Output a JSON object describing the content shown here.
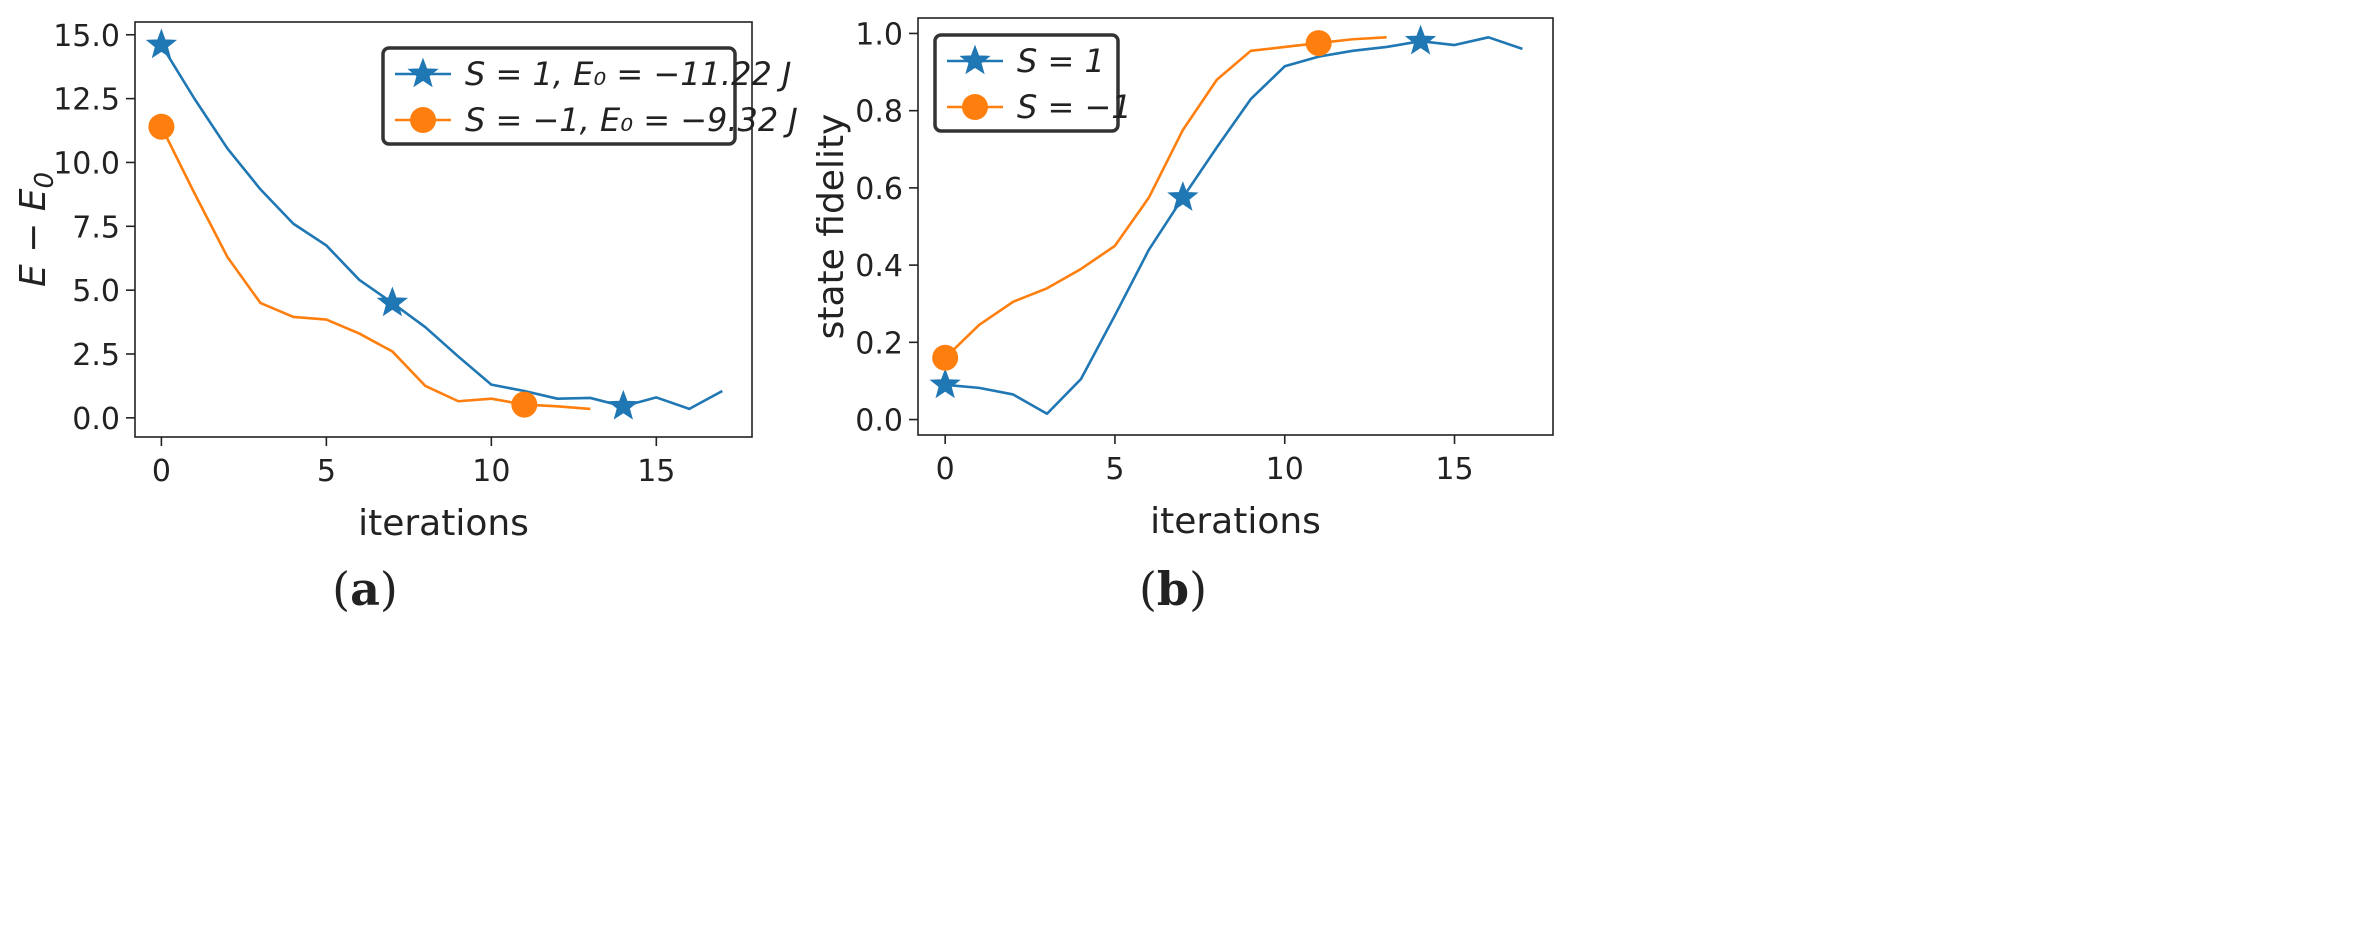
{
  "chart_data": [
    {
      "type": "line",
      "panel_label": "a",
      "xlabel": "iterations",
      "ylabel": "E − E",
      "ylabel_subscript": "0",
      "xlim": [
        -0.8,
        17.9
      ],
      "ylim": [
        -0.75,
        15.5
      ],
      "xticks": [
        0,
        5,
        10,
        15
      ],
      "xtick_labels": [
        "0",
        "5",
        "10",
        "15"
      ],
      "yticks": [
        0,
        2.5,
        5,
        7.5,
        10,
        12.5,
        15
      ],
      "ytick_labels": [
        "0.0",
        "2.5",
        "5.0",
        "7.5",
        "10.0",
        "12.5",
        "15.0"
      ],
      "grid": false,
      "legend_position": "top-right",
      "series": [
        {
          "name": "S = 1, E0 = −11.22 J",
          "legend_label": "S = 1, E₀ = −11.22 J",
          "color": "#1f77b4",
          "marker": "star",
          "marker_indices": [
            0,
            7,
            14
          ],
          "x": [
            0,
            1,
            2,
            3,
            4,
            5,
            6,
            7,
            8,
            9,
            10,
            11,
            12,
            13,
            14,
            15,
            16,
            17
          ],
          "y": [
            14.6,
            12.5,
            10.55,
            8.95,
            7.6,
            6.75,
            5.4,
            4.5,
            3.55,
            2.4,
            1.3,
            1.05,
            0.75,
            0.78,
            0.45,
            0.8,
            0.35,
            1.05
          ]
        },
        {
          "name": "S = −1, E0 = −9.32 J",
          "legend_label": "S = −1, E₀ = −9.32 J",
          "color": "#ff7f0e",
          "marker": "circle",
          "marker_indices": [
            0,
            11
          ],
          "x": [
            0,
            1,
            2,
            3,
            4,
            5,
            6,
            7,
            8,
            9,
            10,
            11,
            12,
            13
          ],
          "y": [
            11.4,
            8.8,
            6.3,
            4.5,
            3.95,
            3.85,
            3.3,
            2.6,
            1.25,
            0.65,
            0.75,
            0.52,
            0.45,
            0.35
          ]
        }
      ]
    },
    {
      "type": "line",
      "panel_label": "b",
      "xlabel": "iterations",
      "ylabel": "state fidelity",
      "xlim": [
        -0.8,
        17.9
      ],
      "ylim": [
        -0.04,
        1.04
      ],
      "xticks": [
        0,
        5,
        10,
        15
      ],
      "xtick_labels": [
        "0",
        "5",
        "10",
        "15"
      ],
      "yticks": [
        0,
        0.2,
        0.4,
        0.6,
        0.8,
        1.0
      ],
      "ytick_labels": [
        "0.0",
        "0.2",
        "0.4",
        "0.6",
        "0.8",
        "1.0"
      ],
      "grid": false,
      "legend_position": "top-left",
      "series": [
        {
          "name": "S = 1",
          "legend_label": "S =  1",
          "color": "#1f77b4",
          "marker": "star",
          "marker_indices": [
            0,
            7,
            14
          ],
          "x": [
            0,
            1,
            2,
            3,
            4,
            5,
            6,
            7,
            8,
            9,
            10,
            11,
            12,
            13,
            14,
            15,
            16,
            17
          ],
          "y": [
            0.09,
            0.082,
            0.065,
            0.015,
            0.105,
            0.27,
            0.44,
            0.575,
            0.705,
            0.83,
            0.915,
            0.94,
            0.955,
            0.965,
            0.98,
            0.97,
            0.99,
            0.96
          ]
        },
        {
          "name": "S = −1",
          "legend_label": "S = −1",
          "color": "#ff7f0e",
          "marker": "circle",
          "marker_indices": [
            0,
            11
          ],
          "x": [
            0,
            1,
            2,
            3,
            4,
            5,
            6,
            7,
            8,
            9,
            10,
            11,
            12,
            13
          ],
          "y": [
            0.16,
            0.245,
            0.305,
            0.34,
            0.39,
            0.45,
            0.575,
            0.75,
            0.88,
            0.955,
            0.965,
            0.975,
            0.985,
            0.99
          ]
        }
      ]
    }
  ]
}
